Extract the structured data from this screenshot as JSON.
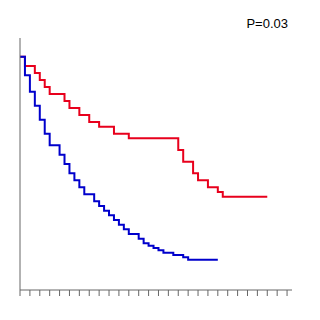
{
  "chart_data": {
    "type": "step",
    "annotation": "P=0.03",
    "series": [
      {
        "color": "#e8001c",
        "x": [
          0,
          1,
          3,
          4,
          5,
          6,
          7,
          8,
          9,
          10,
          11,
          12,
          13,
          14,
          15,
          16,
          17,
          18,
          19,
          20,
          21,
          22,
          24,
          26,
          27,
          28,
          31,
          32,
          33,
          34,
          35,
          36,
          37,
          38,
          39,
          40,
          41,
          42,
          50
        ],
        "values": [
          1.0,
          0.96,
          0.93,
          0.9,
          0.87,
          0.84,
          0.84,
          0.84,
          0.81,
          0.78,
          0.78,
          0.75,
          0.75,
          0.72,
          0.72,
          0.7,
          0.7,
          0.7,
          0.67,
          0.67,
          0.67,
          0.65,
          0.65,
          0.65,
          0.65,
          0.65,
          0.65,
          0.6,
          0.55,
          0.55,
          0.5,
          0.47,
          0.47,
          0.44,
          0.44,
          0.42,
          0.4,
          0.4,
          0.4
        ]
      },
      {
        "color": "#0000cc",
        "x": [
          0,
          1,
          2,
          3,
          4,
          5,
          6,
          7,
          8,
          9,
          10,
          11,
          12,
          13,
          14,
          15,
          16,
          17,
          18,
          19,
          20,
          21,
          22,
          24,
          25,
          26,
          27,
          28,
          29,
          30,
          31,
          32,
          33,
          34,
          35,
          36,
          37,
          38,
          39,
          40
        ],
        "values": [
          1.0,
          0.92,
          0.85,
          0.79,
          0.73,
          0.67,
          0.62,
          0.62,
          0.58,
          0.54,
          0.5,
          0.47,
          0.44,
          0.41,
          0.41,
          0.38,
          0.36,
          0.34,
          0.32,
          0.3,
          0.28,
          0.26,
          0.24,
          0.22,
          0.2,
          0.19,
          0.18,
          0.17,
          0.16,
          0.16,
          0.15,
          0.15,
          0.14,
          0.13,
          0.13,
          0.13,
          0.13,
          0.13,
          0.13,
          0.13
        ]
      }
    ],
    "xlim": [
      0,
      55
    ],
    "xticks": [
      0,
      2,
      4,
      6,
      8,
      10,
      12,
      14,
      16,
      18,
      20,
      22,
      24,
      26,
      28,
      30,
      32,
      34,
      36,
      38,
      40,
      42,
      44,
      46,
      48,
      50,
      52,
      54
    ],
    "ylim": [
      0.0,
      1.08
    ],
    "tick_labels": false
  }
}
